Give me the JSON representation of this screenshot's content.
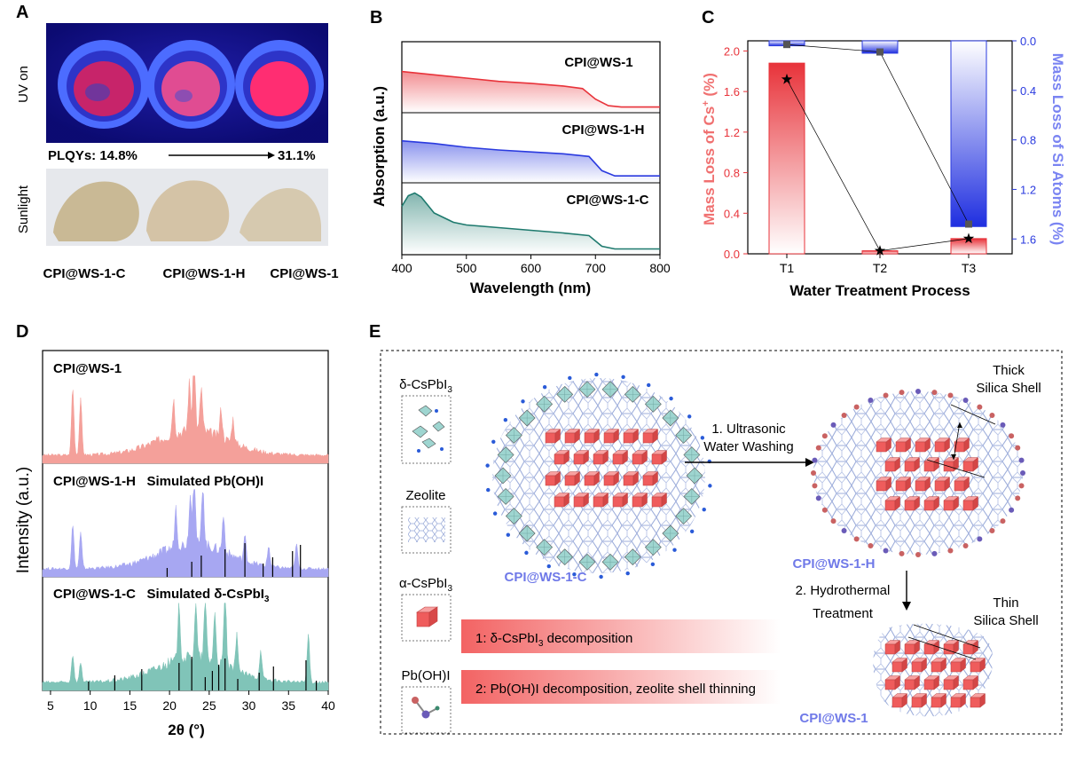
{
  "panels": {
    "A": {
      "letter": "A",
      "uv_label": "UV on",
      "sun_label": "Sunlight",
      "plqy_left": "PLQYs: 14.8%",
      "plqy_right": "31.1%",
      "samples": [
        "CPI@WS-1-C",
        "CPI@WS-1-H",
        "CPI@WS-1"
      ],
      "uv_colors": [
        "#e0306a",
        "#e94a8e",
        "#ff2a70"
      ],
      "sun_colors": [
        "#c8b894",
        "#d3c2a6",
        "#d5c8ae"
      ]
    },
    "B": {
      "letter": "B",
      "ylabel": "Absorption (a.u.)",
      "xlabel": "Wavelength (nm)",
      "xticks": [
        "400",
        "500",
        "600",
        "700",
        "800"
      ]
    },
    "C": {
      "letter": "C",
      "ylabel_left_pre": "Mass Loss of Cs",
      "ylabel_left_sup": "+",
      "ylabel_left_post": " (%)",
      "ylabel_right": "Mass Loss of Si Atoms (%)",
      "xlabel": "Water Treatment Process",
      "yticks_left": [
        "0.0",
        "0.4",
        "0.8",
        "1.2",
        "1.6",
        "2.0"
      ],
      "yticks_right": [
        "0.0",
        "0.4",
        "0.8",
        "1.2",
        "1.6"
      ]
    },
    "D": {
      "letter": "D",
      "ylabel": "Intensity (a.u.)",
      "xlabel_sym": "2θ",
      "xlabel_unit": " (°)",
      "xticks": [
        "5",
        "10",
        "15",
        "20",
        "25",
        "30",
        "35",
        "40"
      ],
      "labels": [
        "CPI@WS-1",
        "CPI@WS-1-H   Simulated Pb(OH)I",
        "CPI@WS-1-C   Simulated δ-CsPbI"
      ],
      "sub3": "3"
    },
    "E": {
      "letter": "E",
      "legend": [
        "δ-CsPbI",
        "Zeolite",
        "α-CsPbI",
        "Pb(OH)I"
      ],
      "sub3": "3",
      "sample_c": "CPI@WS-1-C",
      "sample_h": "CPI@WS-1-H",
      "sample_1": "CPI@WS-1",
      "step1_a": "1. Ultrasonic",
      "step1_b": "Water Washing",
      "step2_a": "2. Hydrothermal",
      "step2_b": "Treatment",
      "thick_a": "Thick",
      "thick_b": "Silica Shell",
      "thin_a": "Thin",
      "thin_b": "Silica Shell",
      "note1_pre": "1: δ-CsPbI",
      "note1_post": " decomposition",
      "note2": "2: Pb(OH)I decomposition, zeolite shell thinning"
    }
  },
  "chart_data": [
    {
      "id": "B",
      "type": "line",
      "title": "",
      "xlabel": "Wavelength (nm)",
      "ylabel": "Absorption (a.u.)",
      "xlim": [
        400,
        800
      ],
      "series": [
        {
          "name": "CPI@WS-1",
          "color": "#e8333a",
          "x": [
            400,
            450,
            500,
            550,
            600,
            650,
            680,
            700,
            720,
            740,
            800
          ],
          "y": [
            0.6,
            0.55,
            0.5,
            0.45,
            0.42,
            0.38,
            0.34,
            0.18,
            0.08,
            0.06,
            0.06
          ]
        },
        {
          "name": "CPI@WS-1-H",
          "color": "#2a3adf",
          "x": [
            400,
            450,
            500,
            550,
            600,
            650,
            690,
            710,
            730,
            800
          ],
          "y": [
            0.62,
            0.58,
            0.52,
            0.48,
            0.45,
            0.42,
            0.38,
            0.16,
            0.08,
            0.08
          ]
        },
        {
          "name": "CPI@WS-1-C",
          "color": "#1e7a6e",
          "x": [
            400,
            410,
            420,
            430,
            450,
            480,
            500,
            550,
            600,
            650,
            690,
            710,
            730,
            800
          ],
          "y": [
            0.7,
            0.86,
            0.9,
            0.84,
            0.6,
            0.46,
            0.42,
            0.38,
            0.34,
            0.3,
            0.26,
            0.1,
            0.06,
            0.06
          ]
        }
      ]
    },
    {
      "id": "C",
      "type": "bar",
      "categories": [
        "T1",
        "T2",
        "T3"
      ],
      "xlabel": "Water Treatment Process",
      "series": [
        {
          "name": "Mass Loss of Cs+ (%)",
          "axis": "left",
          "color": "#e8333a",
          "values": [
            1.88,
            0.03,
            0.15
          ],
          "markers": [
            1.72,
            0.03,
            0.15
          ]
        },
        {
          "name": "Mass Loss of Si Atoms (%)",
          "axis": "right",
          "color": "#2a3adf",
          "values": [
            0.04,
            0.1,
            1.5
          ],
          "markers": [
            0.03,
            0.09,
            1.48
          ]
        }
      ],
      "ylim_left": [
        0,
        2.1
      ],
      "ylim_right": [
        0,
        1.72
      ]
    },
    {
      "id": "D",
      "type": "line",
      "xlabel": "2θ (°)",
      "ylabel": "Intensity (a.u.)",
      "xlim": [
        4,
        40
      ],
      "series": [
        {
          "name": "CPI@WS-1",
          "color": "#f4a09a",
          "peaks": [
            [
              7.8,
              0.85
            ],
            [
              8.8,
              0.7
            ],
            [
              23.1,
              1.0
            ],
            [
              22.5,
              0.6
            ],
            [
              24.0,
              0.55
            ],
            [
              20.5,
              0.45
            ],
            [
              26.5,
              0.35
            ],
            [
              28.0,
              0.3
            ]
          ]
        },
        {
          "name": "CPI@WS-1-H",
          "color": "#a7a7f2",
          "peaks": [
            [
              7.8,
              0.55
            ],
            [
              8.8,
              0.45
            ],
            [
              23.1,
              0.95
            ],
            [
              24.2,
              0.75
            ],
            [
              22.6,
              0.6
            ],
            [
              20.8,
              0.5
            ],
            [
              26.8,
              0.45
            ],
            [
              29.5,
              0.3
            ],
            [
              32.5,
              0.25
            ],
            [
              36.0,
              0.3
            ]
          ]
        },
        {
          "name": "Simulated Pb(OH)I",
          "color": "#000000",
          "type": "stick",
          "x": [
            19.7,
            22.8,
            24.0,
            27.0,
            29.5,
            31.8,
            33.0,
            35.5,
            36.5
          ]
        },
        {
          "name": "CPI@WS-1-C",
          "color": "#80c4b8",
          "peaks": [
            [
              7.8,
              0.35
            ],
            [
              8.8,
              0.25
            ],
            [
              21.2,
              0.7
            ],
            [
              23.3,
              0.65
            ],
            [
              24.5,
              0.75
            ],
            [
              25.7,
              0.6
            ],
            [
              27.0,
              1.0
            ],
            [
              28.5,
              0.45
            ],
            [
              31.5,
              0.35
            ],
            [
              37.5,
              0.6
            ]
          ]
        },
        {
          "name": "Simulated δ-CsPbI3",
          "color": "#000000",
          "type": "stick",
          "x": [
            9.8,
            13.1,
            16.5,
            21.2,
            22.8,
            24.5,
            25.4,
            26.2,
            27.0,
            28.6,
            31.3,
            33.1,
            37.2,
            38.5
          ]
        }
      ]
    }
  ]
}
